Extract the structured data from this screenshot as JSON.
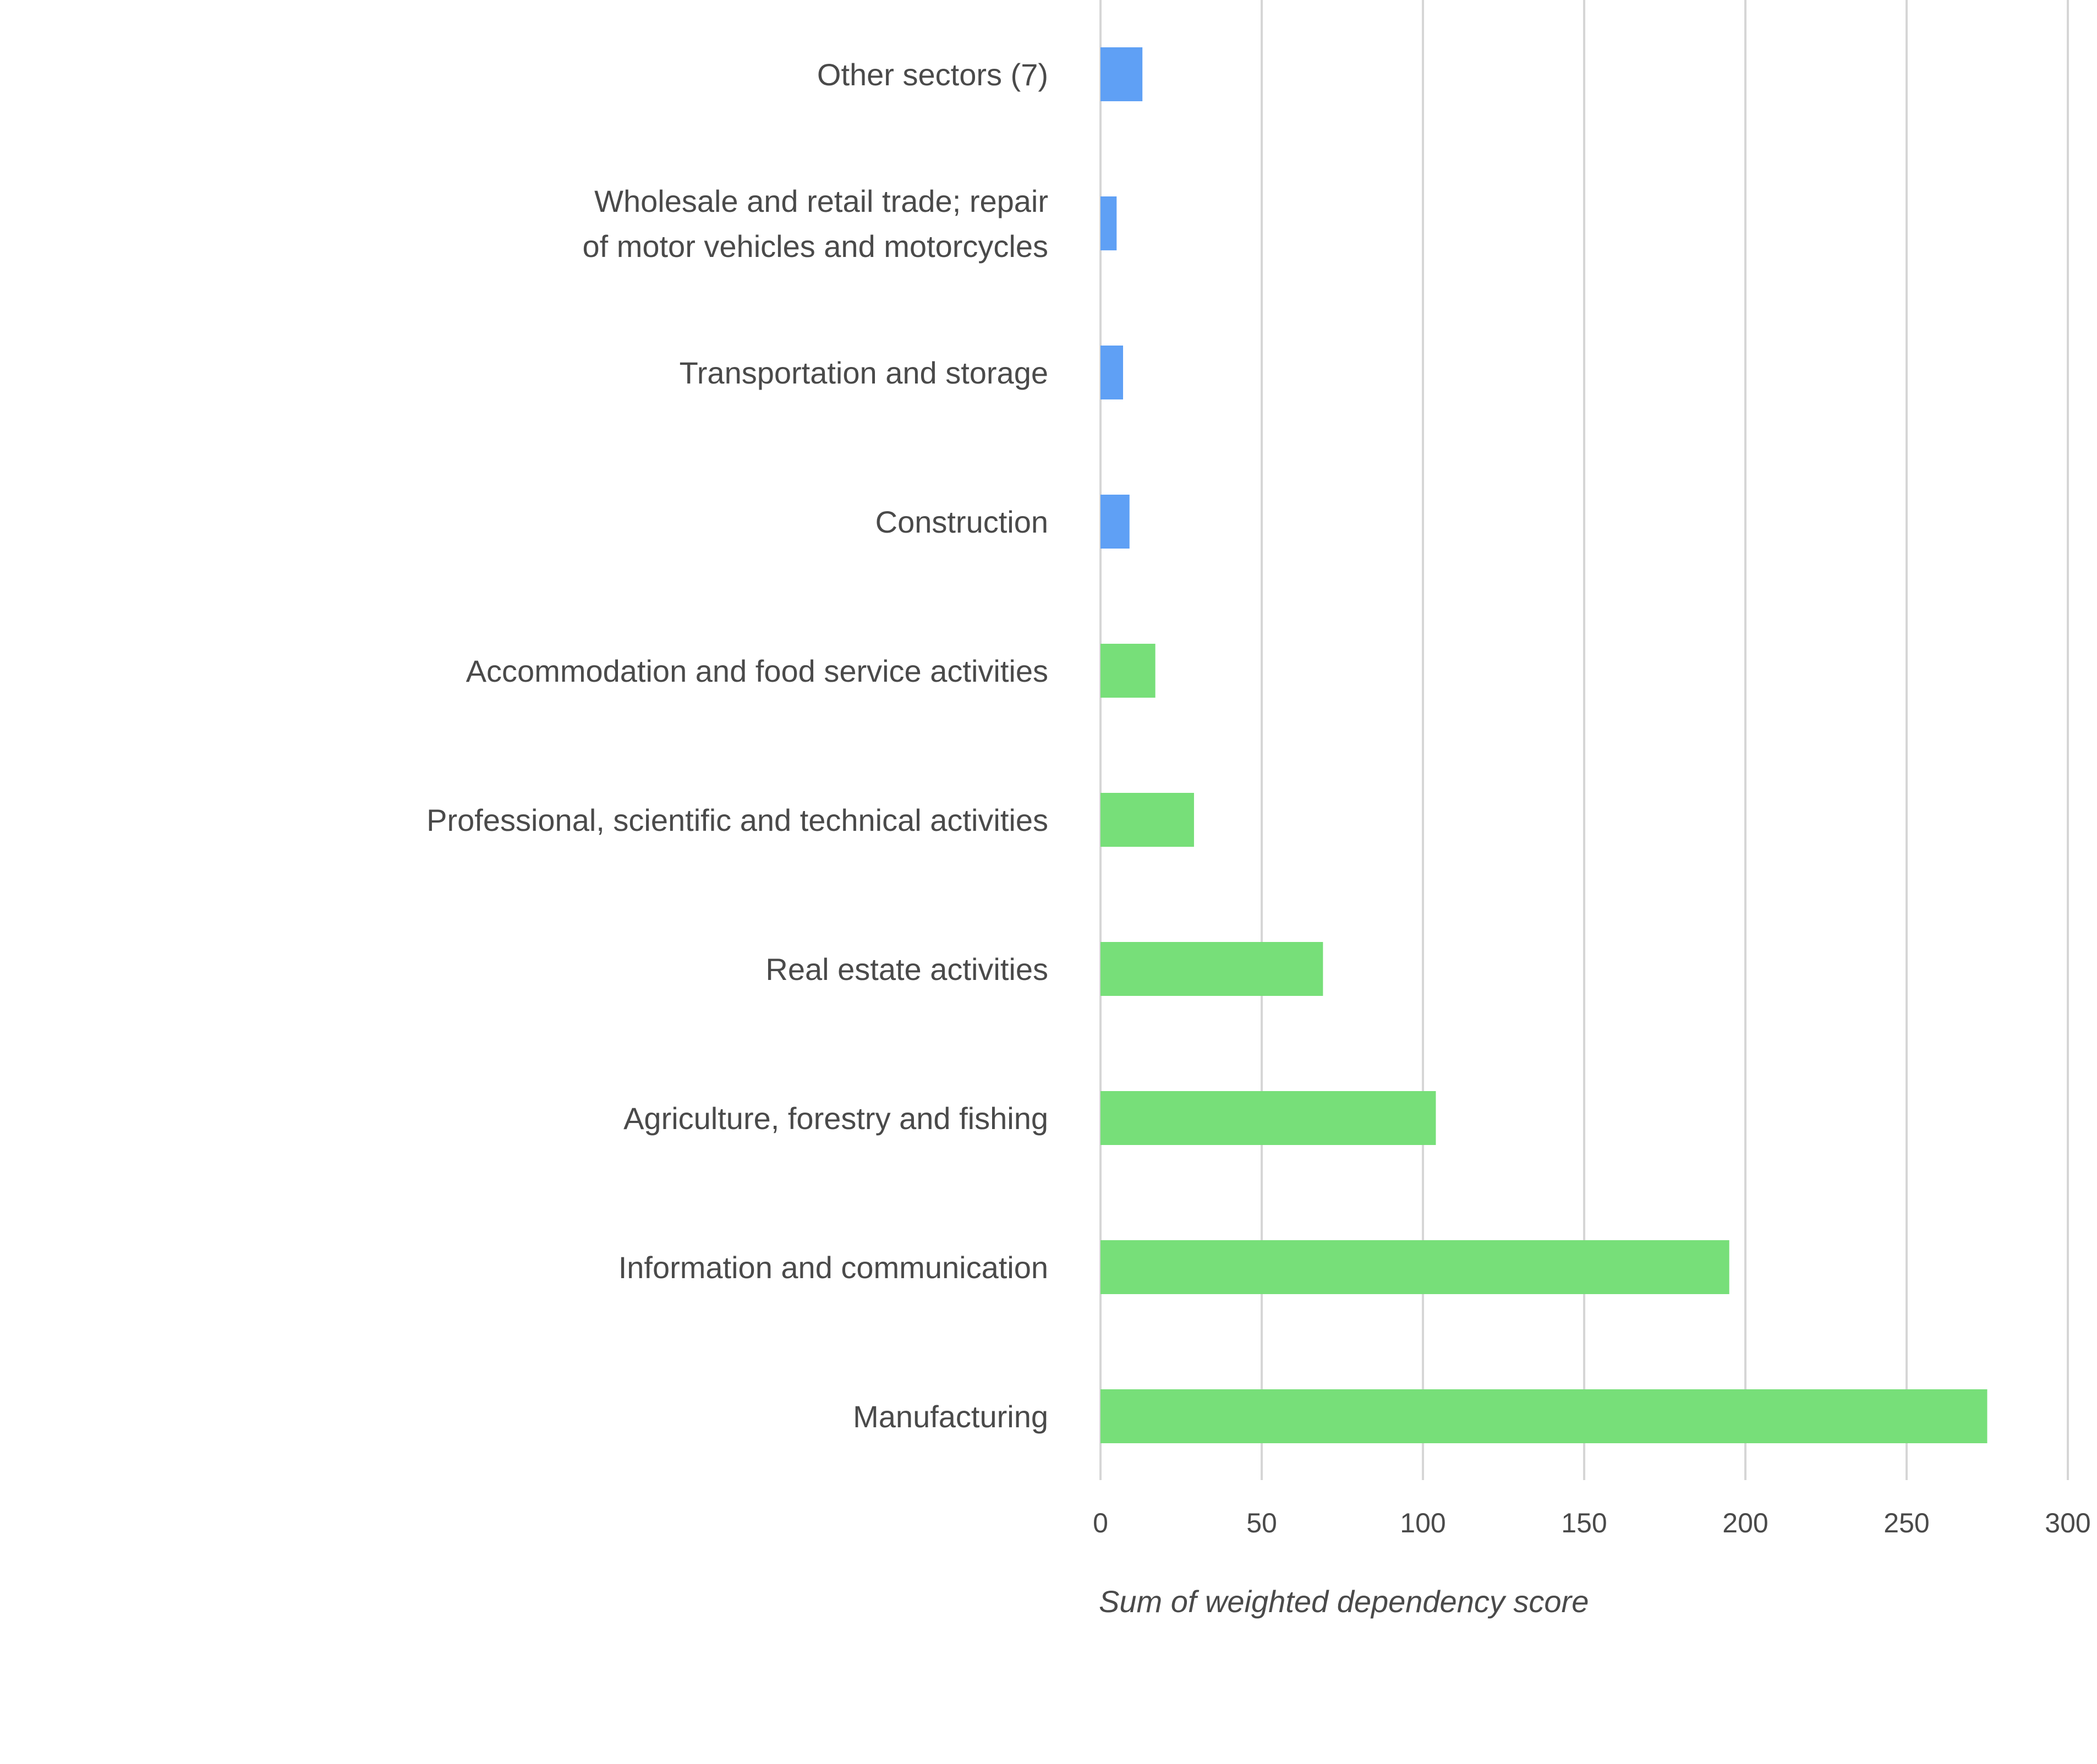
{
  "chart_data": {
    "type": "bar",
    "orientation": "horizontal",
    "title": "",
    "xlabel": "Sum of weighted dependency score",
    "ylabel": "",
    "xlim": [
      0,
      300
    ],
    "xticks": [
      0,
      50,
      100,
      150,
      200,
      250,
      300
    ],
    "grid": true,
    "legend": "none",
    "categories": [
      [
        "Other sectors (7)"
      ],
      [
        "Wholesale and retail trade; repair",
        "of motor vehicles and motorcycles"
      ],
      [
        "Transportation and storage"
      ],
      [
        "Construction"
      ],
      [
        "Accommodation and food service activities"
      ],
      [
        "Professional, scientific and technical activities"
      ],
      [
        "Real estate activities"
      ],
      [
        "Agriculture, forestry and fishing"
      ],
      [
        "Information and communication"
      ],
      [
        "Manufacturing"
      ]
    ],
    "values": [
      13,
      5,
      7,
      9,
      17,
      29,
      69,
      104,
      195,
      275
    ],
    "bar_colors": [
      "#5fa0f5",
      "#5fa0f5",
      "#5fa0f5",
      "#5fa0f5",
      "#77df79",
      "#77df79",
      "#77df79",
      "#77df79",
      "#77df79",
      "#77df79"
    ]
  }
}
